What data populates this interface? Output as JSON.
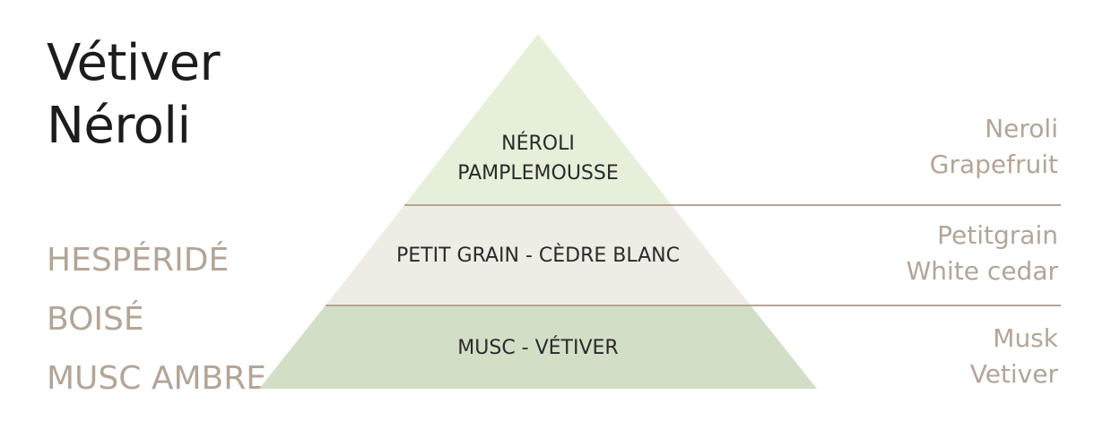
{
  "title": {
    "line1": "Vétiver",
    "line2": "Néroli"
  },
  "olfactory_families": [
    "HESPÉRIDÉ",
    "BOISÉ",
    "MUSC AMBRE"
  ],
  "pyramid": {
    "top": {
      "line1": "NÉROLI",
      "line2": "PAMPLEMOUSSE",
      "translation_line1": "Neroli",
      "translation_line2": "Grapefruit",
      "color": "#e6efd9"
    },
    "middle": {
      "label": "PETIT GRAIN - CÈDRE BLANC",
      "translation_line1": "Petitgrain",
      "translation_line2": "White cedar",
      "color": "#efece6"
    },
    "base": {
      "label": "MUSC - VÉTIVER",
      "translation_line1": "Musk",
      "translation_line2": "Vetiver",
      "color": "#d3dec7"
    },
    "divider_color": "#b3a597"
  }
}
